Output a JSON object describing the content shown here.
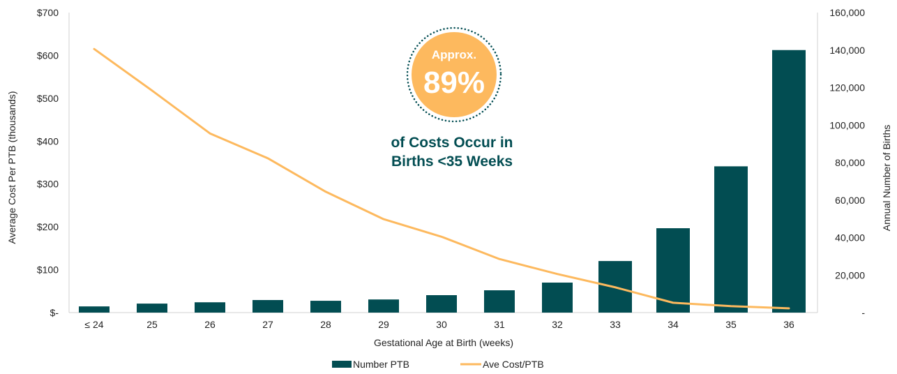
{
  "chart_data": {
    "type": "bar+line",
    "categories": [
      "≤ 24",
      "25",
      "26",
      "27",
      "28",
      "29",
      "30",
      "31",
      "32",
      "33",
      "34",
      "35",
      "36"
    ],
    "series": [
      {
        "name": "Number PTB",
        "type": "bar",
        "axis": "right",
        "color": "#024d52",
        "values": [
          3300,
          4800,
          5500,
          6700,
          6300,
          7000,
          9300,
          11900,
          16000,
          27500,
          45000,
          78000,
          140000
        ]
      },
      {
        "name": "Ave Cost/PTB",
        "type": "line",
        "axis": "left",
        "color": "#fdb95e",
        "values": [
          615,
          518,
          418,
          360,
          282,
          218,
          177,
          125,
          90,
          59,
          23,
          15,
          10
        ]
      }
    ],
    "xlabel": "Gestational Age at Birth (weeks)",
    "ylabel": "Average Cost Per PTB (thousands)",
    "y2label": "Annual Number of Births",
    "ylim": [
      0,
      700
    ],
    "y2lim": [
      0,
      160000
    ],
    "yticks": [
      "$-",
      "$100",
      "$200",
      "$300",
      "$400",
      "$500",
      "$600",
      "$700"
    ],
    "y2ticks": [
      "-",
      "20,000",
      "40,000",
      "60,000",
      "80,000",
      "100,000",
      "120,000",
      "140,000",
      "160,000"
    ],
    "legend_position": "bottom",
    "annotation": {
      "badge_top": "Approx.",
      "badge_value": "89%",
      "line1": "of Costs Occur in",
      "line2": "Births <35 Weeks"
    }
  }
}
